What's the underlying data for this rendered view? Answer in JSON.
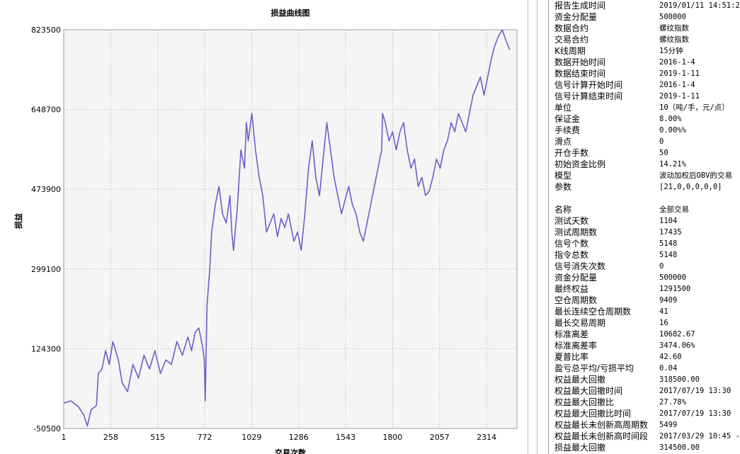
{
  "chart_data": {
    "type": "line",
    "title": "损益曲线图",
    "xlabel": "交易次数",
    "ylabel": "损益",
    "xlim": [
      1,
      2480
    ],
    "ylim": [
      -50500,
      823500
    ],
    "x_ticks": [
      "1",
      "258",
      "515",
      "772",
      "1029",
      "1286",
      "1543",
      "1800",
      "2057",
      "2314"
    ],
    "y_ticks": [
      "823500",
      "648700",
      "473900",
      "299100",
      "124300",
      "-50500"
    ],
    "grid": true,
    "series": [
      {
        "color": "#6a60c8",
        "points": [
          [
            1,
            5000
          ],
          [
            40,
            10000
          ],
          [
            80,
            -2000
          ],
          [
            110,
            -20000
          ],
          [
            130,
            -45000
          ],
          [
            150,
            -10000
          ],
          [
            180,
            0
          ],
          [
            190,
            70000
          ],
          [
            210,
            80000
          ],
          [
            230,
            120000
          ],
          [
            250,
            90000
          ],
          [
            270,
            140000
          ],
          [
            300,
            100000
          ],
          [
            320,
            50000
          ],
          [
            350,
            30000
          ],
          [
            380,
            90000
          ],
          [
            410,
            60000
          ],
          [
            440,
            110000
          ],
          [
            470,
            80000
          ],
          [
            500,
            120000
          ],
          [
            530,
            70000
          ],
          [
            560,
            100000
          ],
          [
            590,
            90000
          ],
          [
            620,
            140000
          ],
          [
            650,
            110000
          ],
          [
            680,
            150000
          ],
          [
            700,
            120000
          ],
          [
            720,
            160000
          ],
          [
            740,
            170000
          ],
          [
            760,
            130000
          ],
          [
            770,
            100000
          ],
          [
            775,
            10000
          ],
          [
            785,
            220000
          ],
          [
            800,
            300000
          ],
          [
            810,
            380000
          ],
          [
            830,
            440000
          ],
          [
            850,
            480000
          ],
          [
            870,
            420000
          ],
          [
            890,
            400000
          ],
          [
            910,
            460000
          ],
          [
            920,
            380000
          ],
          [
            930,
            340000
          ],
          [
            950,
            430000
          ],
          [
            970,
            560000
          ],
          [
            990,
            520000
          ],
          [
            1000,
            620000
          ],
          [
            1010,
            580000
          ],
          [
            1030,
            640000
          ],
          [
            1050,
            560000
          ],
          [
            1070,
            500000
          ],
          [
            1090,
            460000
          ],
          [
            1110,
            380000
          ],
          [
            1130,
            400000
          ],
          [
            1150,
            420000
          ],
          [
            1170,
            370000
          ],
          [
            1190,
            410000
          ],
          [
            1210,
            390000
          ],
          [
            1230,
            420000
          ],
          [
            1260,
            360000
          ],
          [
            1280,
            380000
          ],
          [
            1300,
            340000
          ],
          [
            1320,
            420000
          ],
          [
            1340,
            520000
          ],
          [
            1360,
            580000
          ],
          [
            1380,
            500000
          ],
          [
            1400,
            460000
          ],
          [
            1420,
            540000
          ],
          [
            1440,
            620000
          ],
          [
            1460,
            560000
          ],
          [
            1480,
            500000
          ],
          [
            1500,
            460000
          ],
          [
            1520,
            420000
          ],
          [
            1540,
            450000
          ],
          [
            1560,
            480000
          ],
          [
            1580,
            440000
          ],
          [
            1600,
            420000
          ],
          [
            1620,
            380000
          ],
          [
            1640,
            360000
          ],
          [
            1660,
            400000
          ],
          [
            1680,
            440000
          ],
          [
            1700,
            480000
          ],
          [
            1720,
            520000
          ],
          [
            1740,
            560000
          ],
          [
            1745,
            640000
          ],
          [
            1760,
            620000
          ],
          [
            1780,
            580000
          ],
          [
            1800,
            600000
          ],
          [
            1820,
            560000
          ],
          [
            1840,
            600000
          ],
          [
            1860,
            620000
          ],
          [
            1880,
            560000
          ],
          [
            1900,
            520000
          ],
          [
            1920,
            540000
          ],
          [
            1940,
            480000
          ],
          [
            1960,
            500000
          ],
          [
            1980,
            460000
          ],
          [
            2000,
            470000
          ],
          [
            2020,
            500000
          ],
          [
            2040,
            540000
          ],
          [
            2060,
            520000
          ],
          [
            2080,
            560000
          ],
          [
            2100,
            580000
          ],
          [
            2120,
            620000
          ],
          [
            2140,
            600000
          ],
          [
            2160,
            640000
          ],
          [
            2180,
            620000
          ],
          [
            2200,
            600000
          ],
          [
            2220,
            640000
          ],
          [
            2240,
            680000
          ],
          [
            2260,
            700000
          ],
          [
            2280,
            720000
          ],
          [
            2300,
            680000
          ],
          [
            2320,
            720000
          ],
          [
            2340,
            760000
          ],
          [
            2360,
            790000
          ],
          [
            2380,
            810000
          ],
          [
            2400,
            823000
          ],
          [
            2420,
            800000
          ],
          [
            2440,
            780000
          ]
        ]
      }
    ]
  },
  "stats": {
    "rows": [
      {
        "k": "报告生成时间",
        "v": "2019/01/11 14:51:22"
      },
      {
        "k": "资金分配量",
        "v": "500000"
      },
      {
        "k": "数据合约",
        "v": "螺纹指数"
      },
      {
        "k": "交易合约",
        "v": "螺纹指数"
      },
      {
        "k": "K线周期",
        "v": "15分钟"
      },
      {
        "k": "数据开始时间",
        "v": "2016-1-4"
      },
      {
        "k": "数据结束时间",
        "v": "2019-1-11"
      },
      {
        "k": "信号计算开始时间",
        "v": "2016-1-4"
      },
      {
        "k": "信号计算结束时间",
        "v": "2019-1-11"
      },
      {
        "k": "单位",
        "v": "10（吨/手，元/点）"
      },
      {
        "k": "保证金",
        "v": "8.00%"
      },
      {
        "k": "手续费",
        "v": "0.00%%"
      },
      {
        "k": "滑点",
        "v": "0"
      },
      {
        "k": "开仓手数",
        "v": "50"
      },
      {
        "k": "初始资金比例",
        "v": "14.21%"
      },
      {
        "k": "模型",
        "v": "波动加权后OBV的交易"
      },
      {
        "k": "参数",
        "v": "[21,0,0,0,0,0]"
      },
      {
        "k": "",
        "v": ""
      },
      {
        "k": "名称",
        "v": "全部交易"
      },
      {
        "k": "测试天数",
        "v": "1104"
      },
      {
        "k": "测试周期数",
        "v": "17435"
      },
      {
        "k": "信号个数",
        "v": "5148"
      },
      {
        "k": "指令总数",
        "v": "5148"
      },
      {
        "k": "信号消失次数",
        "v": "0"
      },
      {
        "k": "资金分配量",
        "v": "500000"
      },
      {
        "k": "最终权益",
        "v": "1291500"
      },
      {
        "k": "空仓周期数",
        "v": "9409"
      },
      {
        "k": "最长连续空仓周期数",
        "v": "41"
      },
      {
        "k": "最长交易周期",
        "v": "16"
      },
      {
        "k": "标准离差",
        "v": "10682.67"
      },
      {
        "k": "标准离差率",
        "v": "3474.06%"
      },
      {
        "k": "夏普比率",
        "v": "42.60"
      },
      {
        "k": "盈亏总平均/亏损平均",
        "v": "0.04"
      },
      {
        "k": "权益最大回撤",
        "v": "318500.00"
      },
      {
        "k": "权益最大回撤时间",
        "v": "2017/07/19 13:30"
      },
      {
        "k": "权益最大回撤比",
        "v": "27.78%"
      },
      {
        "k": "权益最大回撤比时间",
        "v": "2017/07/19 13:30"
      },
      {
        "k": "权益最长未创新高周期数",
        "v": "5499"
      },
      {
        "k": "权益最长未创新高时间段",
        "v": "2017/03/29 10:45 -"
      },
      {
        "k": "损益最大回撤",
        "v": "314500.00"
      }
    ]
  }
}
